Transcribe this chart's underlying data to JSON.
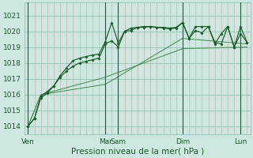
{
  "bg_color": "#cce8e0",
  "grid_color_v": "#c8a8a8",
  "grid_color_h": "#a8c8c0",
  "line_color_dark": "#1a5c28",
  "line_color_light": "#4a9060",
  "xlabel": "Pression niveau de la mer( hPa )",
  "ylim": [
    1013.5,
    1021.8
  ],
  "yticks": [
    1014,
    1015,
    1016,
    1017,
    1018,
    1019,
    1020,
    1021
  ],
  "xlabel_fontsize": 7.5,
  "tick_fontsize": 6.5,
  "x_day_labels": [
    "Ven",
    "Mar",
    "Sam",
    "Dim",
    "Lun"
  ],
  "x_day_positions": [
    0,
    12,
    14,
    24,
    33
  ],
  "vline_positions": [
    0,
    12,
    14,
    24,
    33
  ],
  "series_dark1_x": [
    0,
    1,
    2,
    3,
    4,
    5,
    6,
    7,
    8,
    9,
    10,
    11,
    12,
    13,
    14,
    15,
    16,
    17,
    18,
    19,
    20,
    21,
    22,
    23,
    24,
    25,
    26,
    27,
    28,
    29,
    30,
    31,
    32,
    33,
    34
  ],
  "series_dark1_y": [
    1014.0,
    1014.5,
    1015.8,
    1016.1,
    1016.55,
    1017.2,
    1017.7,
    1018.15,
    1018.3,
    1018.4,
    1018.5,
    1018.55,
    1019.35,
    1020.55,
    1019.25,
    1020.0,
    1020.05,
    1020.25,
    1020.3,
    1020.3,
    1020.25,
    1020.25,
    1020.2,
    1020.25,
    1020.55,
    1019.55,
    1020.3,
    1020.3,
    1020.3,
    1019.3,
    1019.2,
    1020.3,
    1019.0,
    1020.3,
    1019.3
  ],
  "series_dark2_x": [
    0,
    1,
    2,
    3,
    4,
    5,
    6,
    7,
    8,
    9,
    10,
    11,
    12,
    13,
    14,
    15,
    16,
    17,
    18,
    19,
    20,
    21,
    22,
    23,
    24,
    25,
    26,
    27,
    28,
    29,
    30,
    31,
    32,
    33,
    34
  ],
  "series_dark2_y": [
    1014.0,
    1014.5,
    1015.9,
    1016.2,
    1016.55,
    1017.1,
    1017.5,
    1017.8,
    1018.0,
    1018.1,
    1018.2,
    1018.3,
    1019.2,
    1019.4,
    1019.0,
    1020.0,
    1020.2,
    1020.25,
    1020.25,
    1020.3,
    1020.25,
    1020.2,
    1020.15,
    1020.2,
    1020.55,
    1019.55,
    1020.05,
    1019.9,
    1020.3,
    1019.2,
    1019.85,
    1020.3,
    1019.0,
    1019.85,
    1019.3
  ],
  "series_light1_x": [
    0,
    2,
    12,
    24,
    34
  ],
  "series_light1_y": [
    1014.0,
    1016.0,
    1016.65,
    1019.55,
    1019.2
  ],
  "series_light2_x": [
    0,
    2,
    12,
    24,
    34
  ],
  "series_light2_y": [
    1014.0,
    1016.0,
    1017.1,
    1018.9,
    1019.0
  ]
}
